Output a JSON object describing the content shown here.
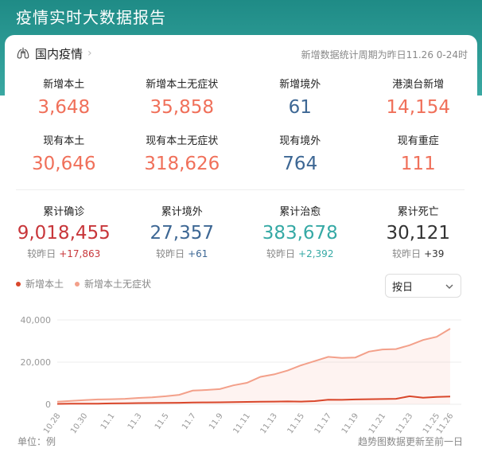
{
  "header": {
    "title": "疫情实时大数据报告"
  },
  "section": {
    "title": "国内疫情",
    "period": "新增数据统计周期为昨日11.26 0-24时"
  },
  "row1": [
    {
      "label": "新增本土",
      "value": "3,648",
      "color": "#f0705a"
    },
    {
      "label": "新增本土无症状",
      "value": "35,858",
      "color": "#f0705a"
    },
    {
      "label": "新增境外",
      "value": "61",
      "color": "#3d6794"
    },
    {
      "label": "港澳台新增",
      "value": "14,154",
      "color": "#f0705a"
    }
  ],
  "row2": [
    {
      "label": "现有本土",
      "value": "30,646",
      "color": "#f0705a"
    },
    {
      "label": "现有本土无症状",
      "value": "318,626",
      "color": "#f0705a"
    },
    {
      "label": "现有境外",
      "value": "764",
      "color": "#3d6794"
    },
    {
      "label": "现有重症",
      "value": "111",
      "color": "#f0705a"
    }
  ],
  "cumulative": [
    {
      "label": "累计确诊",
      "value": "9,018,455",
      "compare_label": "较昨日",
      "compare_value": "+17,863",
      "color": "#c8363a"
    },
    {
      "label": "累计境外",
      "value": "27,357",
      "compare_label": "较昨日",
      "compare_value": "+61",
      "color": "#3d6794"
    },
    {
      "label": "累计治愈",
      "value": "383,678",
      "compare_label": "较昨日",
      "compare_value": "+2,392",
      "color": "#35a9a5"
    },
    {
      "label": "累计死亡",
      "value": "30,121",
      "compare_label": "较昨日",
      "compare_value": "+39",
      "color": "#333333"
    }
  ],
  "legend": [
    {
      "name": "新增本土",
      "color": "#d9472b"
    },
    {
      "name": "新增本土无症状",
      "color": "#f3a08a"
    }
  ],
  "select": {
    "value": "按日"
  },
  "footer": {
    "unit": "单位：例",
    "note": "趋势图数据更新至前一日"
  },
  "chart_data": {
    "type": "area",
    "x": [
      "10.28",
      "10.29",
      "10.30",
      "10.31",
      "11.1",
      "11.2",
      "11.3",
      "11.4",
      "11.5",
      "11.6",
      "11.7",
      "11.8",
      "11.9",
      "11.10",
      "11.11",
      "11.12",
      "11.13",
      "11.14",
      "11.15",
      "11.16",
      "11.17",
      "11.18",
      "11.19",
      "11.20",
      "11.21",
      "11.22",
      "11.23",
      "11.24",
      "11.25",
      "11.26"
    ],
    "x_tick_labels": [
      "10.28",
      "10.30",
      "11.1",
      "11.3",
      "11.5",
      "11.7",
      "11.9",
      "11.11",
      "11.13",
      "11.15",
      "11.17",
      "11.19",
      "11.21",
      "11.23",
      "11.25",
      "11.26"
    ],
    "series": [
      {
        "name": "新增本土",
        "color": "#d9472b",
        "values": [
          200,
          250,
          300,
          320,
          400,
          450,
          550,
          600,
          650,
          700,
          850,
          900,
          950,
          1000,
          1150,
          1200,
          1300,
          1350,
          1300,
          1500,
          2200,
          2100,
          2300,
          2400,
          2500,
          2600,
          3800,
          3100,
          3500,
          3648
        ]
      },
      {
        "name": "新增本土无症状",
        "color": "#f3a08a",
        "values": [
          1200,
          1600,
          2000,
          2300,
          2400,
          2600,
          3000,
          3300,
          3800,
          4500,
          6500,
          6800,
          7200,
          9000,
          10200,
          13000,
          14200,
          16000,
          18500,
          20500,
          22500,
          22000,
          22200,
          25000,
          26000,
          26200,
          28000,
          30500,
          32000,
          35858
        ]
      }
    ],
    "ylim": [
      0,
      40000
    ],
    "y_ticks": [
      0,
      20000,
      40000
    ],
    "y_tick_labels": [
      "0",
      "20,000",
      "40,000"
    ],
    "grid": true,
    "legend_position": "top-left"
  }
}
